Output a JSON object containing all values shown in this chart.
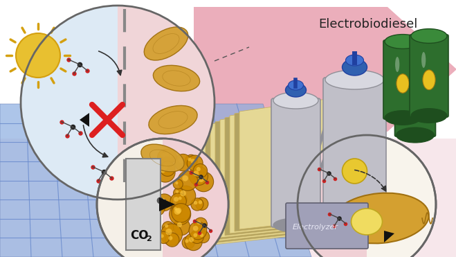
{
  "title": "Electrobiodiesel",
  "background_color": "#ffffff",
  "figsize": [
    6.59,
    3.71
  ],
  "dpi": 100,
  "colors": {
    "sun_yellow": "#e8c030",
    "sun_edge": "#d4a010",
    "solar_blue": "#8aade0",
    "solar_grid": "#6688cc",
    "solar_dark": "#607ab0",
    "pink_arrow": "#e8a0b0",
    "pink_light": "#f0c8d0",
    "yellow_plate": "#e8dc98",
    "yellow_plate_edge": "#c8b060",
    "yellow_plate_dark": "#b0a060",
    "circ1_bg_blue": "#ddeaf5",
    "circ1_bg_pink": "#f5dde0",
    "circ2_bg": "#f5f0e8",
    "circ3_bg": "#f8f4ec",
    "bacteria_gold": "#d4a030",
    "bacteria_edge": "#a07010",
    "reactor_gray": "#c0bfc8",
    "reactor_dark": "#909098",
    "reactor_light": "#d8d8e0",
    "blue_motor": "#3060b0",
    "barrel_green": "#2d6e2d",
    "barrel_light": "#3a8a3a",
    "barrel_dark": "#1e4e1e",
    "oil_yellow": "#e8c020",
    "co2_box": "#d0d0d0",
    "co2_box_edge": "#909090",
    "nano_gold": "#cc8800",
    "nano_edge": "#885500",
    "red_x": "#dd2020",
    "molecule_black": "#222222",
    "molecule_red": "#cc2222",
    "molecule_bond": "#444444",
    "electrolyzer_gray": "#9090a0",
    "electrolyzer_text": "#ccccdd",
    "dashed_line": "#555555",
    "circle_edge": "#666666",
    "text_dark": "#222222",
    "white_arrow": "#f0f0f0"
  }
}
